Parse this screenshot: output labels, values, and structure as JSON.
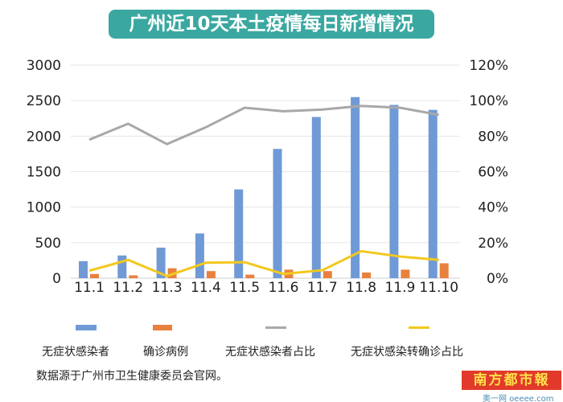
{
  "chart_data": {
    "type": "bar+line",
    "title": "广州近10天本土疫情每日新增情况",
    "categories": [
      "11.1",
      "11.2",
      "11.3",
      "11.4",
      "11.5",
      "11.6",
      "11.7",
      "11.8",
      "11.9",
      "11.10"
    ],
    "y_left": {
      "range": [
        0,
        3000
      ],
      "ticks": [
        "0",
        "500",
        "1000",
        "1500",
        "2000",
        "2500",
        "3000"
      ]
    },
    "y_right": {
      "range": [
        0,
        120
      ],
      "ticks": [
        "0%",
        "20%",
        "40%",
        "60%",
        "80%",
        "100%",
        "120%"
      ]
    },
    "grid": true,
    "legend_position": "bottom",
    "series": [
      {
        "name": "无症状感染者",
        "type": "bar",
        "axis": "left",
        "color": "#6f9ad6",
        "values": [
          240,
          320,
          430,
          630,
          1250,
          1820,
          2270,
          2550,
          2440,
          2370
        ]
      },
      {
        "name": "确诊病例",
        "type": "bar",
        "axis": "left",
        "color": "#e8813e",
        "values": [
          60,
          40,
          140,
          100,
          50,
          120,
          100,
          80,
          120,
          210
        ]
      },
      {
        "name": "无症状感染者占比",
        "type": "line",
        "axis": "right",
        "color": "#a8a8a8",
        "values": [
          78,
          87,
          75.5,
          85,
          96,
          94,
          95,
          97,
          96,
          92
        ]
      },
      {
        "name": "无症状感染转确诊占比",
        "type": "line",
        "axis": "right",
        "color": "#f2c81e",
        "values": [
          4.2,
          10.3,
          1.2,
          8.7,
          9,
          2.4,
          4.5,
          15.2,
          12.2,
          10.3
        ]
      }
    ]
  },
  "source": "数据源于广州市卫生健康委员会官网。",
  "logo": {
    "name": "南方都市報",
    "site": "奥一网 oeeee.com"
  }
}
